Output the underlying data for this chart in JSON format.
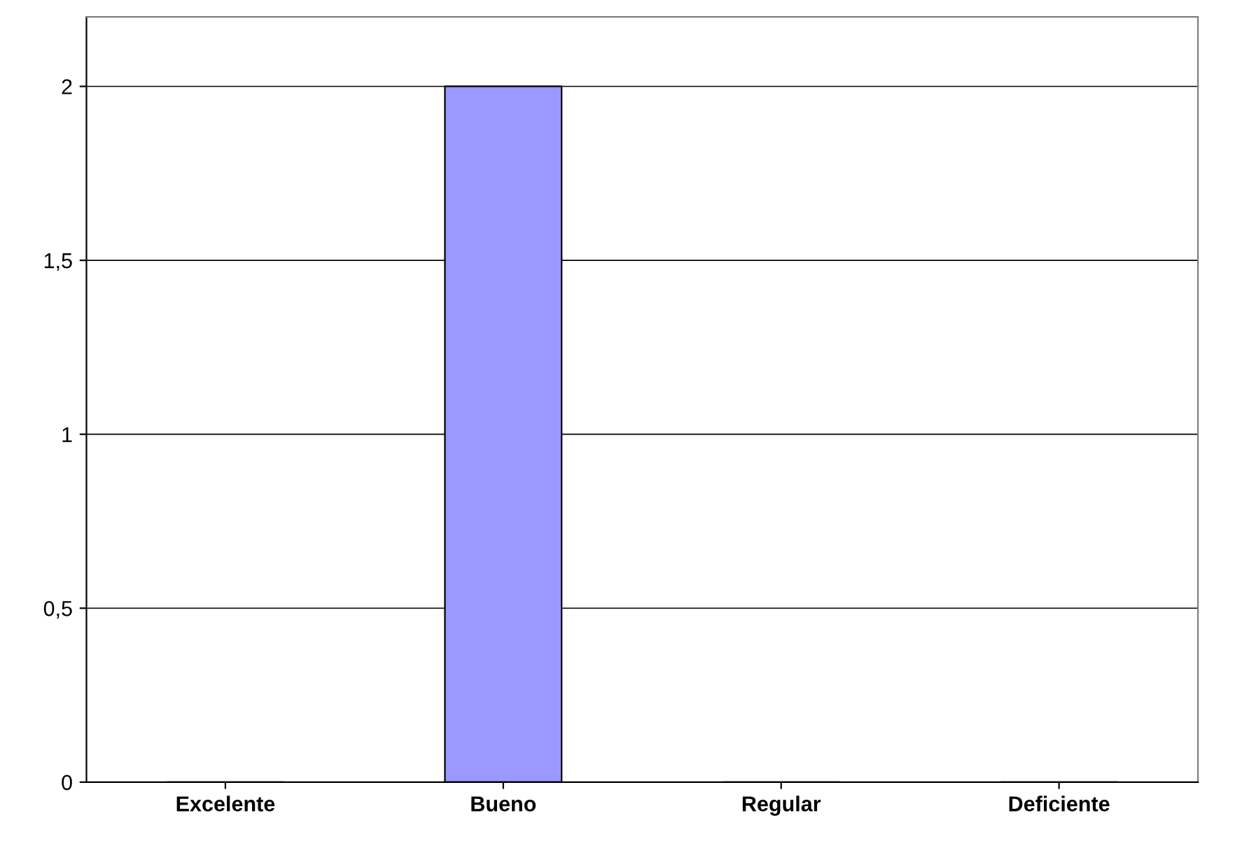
{
  "chart_data": {
    "type": "bar",
    "categories": [
      "Excelente",
      "Bueno",
      "Regular",
      "Deficiente"
    ],
    "values": [
      0,
      2,
      0,
      0
    ],
    "colors": [
      "#00cc00",
      "#9999ff",
      "#cc7a00",
      "#99cccc"
    ],
    "ylim": [
      0,
      2.2
    ],
    "yticks": [
      0,
      {
        "value": 0.5,
        "label": "0,5"
      },
      1,
      {
        "value": 1.5,
        "label": "1,5"
      },
      2
    ],
    "grid": "y"
  }
}
